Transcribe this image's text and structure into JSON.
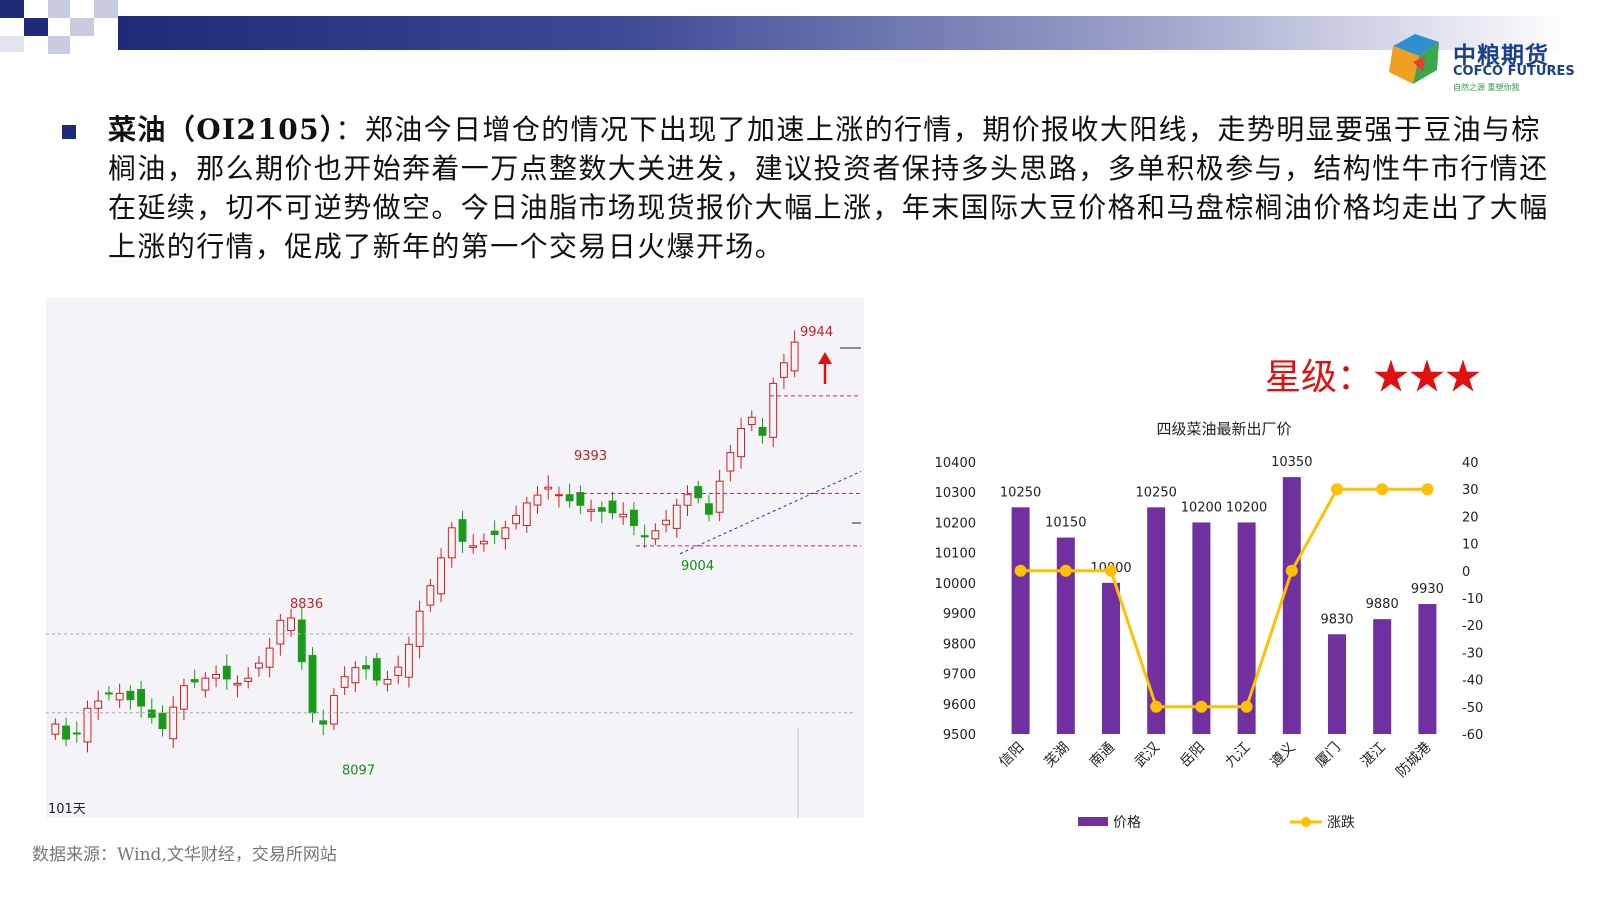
{
  "header": {
    "logo_cn": "中粮期货",
    "logo_en": "COFCO FUTURES",
    "logo_slogan": "自然之源 重塑你我"
  },
  "paragraph": {
    "title": "菜油（OI2105）",
    "body": "：郑油今日增仓的情况下出现了加速上涨的行情，期价报收大阳线，走势明显要强于豆油与棕榈油，那么期价也开始奔着一万点整数大关进发，建议投资者保持多头思路，多单积极参与，结构性牛市行情还在延续，切不可逆势做空。今日油脂市场现货报价大幅上涨，年末国际大豆价格和马盘棕榈油价格均走出了大幅上涨的行情，促成了新年的第一个交易日火爆开场。"
  },
  "kline": {
    "annotations": [
      {
        "label": "9944",
        "price": 9944
      },
      {
        "label": "9393",
        "price": 9393
      },
      {
        "label": "9004",
        "price": 9004
      },
      {
        "label": "8836",
        "price": 8836
      },
      {
        "label": "8097",
        "price": 8097
      }
    ],
    "period_label": "101天"
  },
  "rating": {
    "label": "星级：",
    "stars": "★★★"
  },
  "chart_data": {
    "type": "bar",
    "title": "四级菜油最新出厂价",
    "categories": [
      "信阳",
      "芜湖",
      "南通",
      "武汉",
      "岳阳",
      "九江",
      "遵义",
      "厦门",
      "湛江",
      "防城港"
    ],
    "series": [
      {
        "name": "价格",
        "type": "bar",
        "axis": "left",
        "color": "#7030a0",
        "values": [
          10250,
          10150,
          10000,
          10250,
          10200,
          10200,
          10350,
          9830,
          9880,
          9930
        ]
      },
      {
        "name": "涨跌",
        "type": "line",
        "axis": "right",
        "color": "#ffc000",
        "values": [
          0,
          0,
          0,
          -50,
          -50,
          -50,
          0,
          30,
          30,
          30
        ]
      }
    ],
    "ylim_left": [
      9500,
      10400
    ],
    "yticks_left": [
      9500,
      9600,
      9700,
      9800,
      9900,
      10000,
      10100,
      10200,
      10300,
      10400
    ],
    "ylim_right": [
      -60,
      40
    ],
    "yticks_right": [
      -60,
      -50,
      -40,
      -30,
      -20,
      -10,
      0,
      10,
      20,
      30,
      40
    ],
    "legend_position": "bottom",
    "grid": false
  },
  "source": "数据来源：Wind,文华财经，交易所网站"
}
